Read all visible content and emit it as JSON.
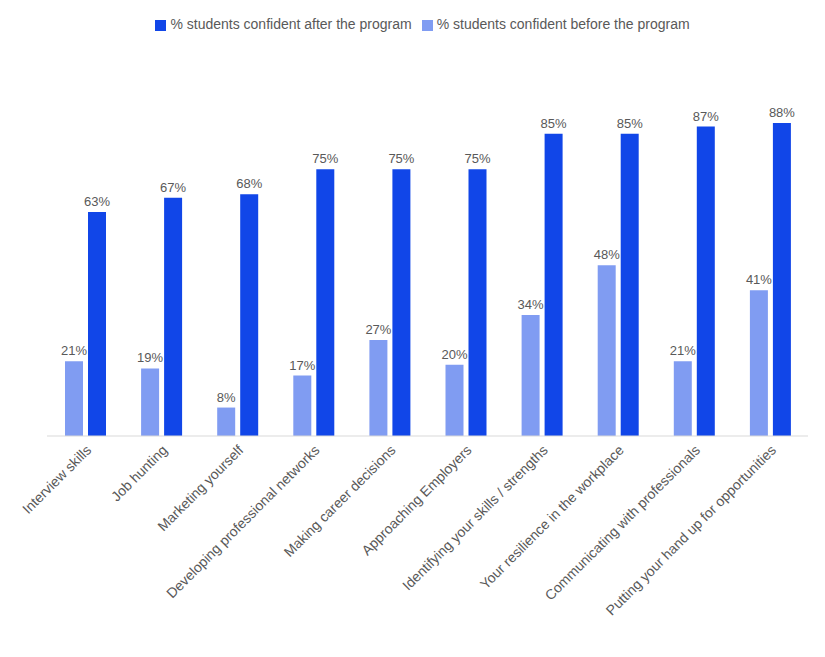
{
  "chart_data": {
    "type": "bar",
    "categories": [
      "Interview skills",
      "Job hunting",
      "Marketing yourself",
      "Developing professional networks",
      "Making career decisions",
      "Approaching Employers",
      "Identifying your skills / strengths",
      "Your resilience in the workplace",
      "Communicating with professionals",
      "Putting your hand up for opportunities"
    ],
    "series": [
      {
        "name": "% students confident before the program",
        "color": "#809cf2",
        "values": [
          21,
          19,
          8,
          17,
          27,
          20,
          34,
          48,
          21,
          41
        ],
        "value_labels": [
          "21%",
          "19%",
          "8%",
          "17%",
          "27%",
          "20%",
          "34%",
          "48%",
          "21%",
          "41%"
        ]
      },
      {
        "name": "% students confident after the program",
        "color": "#1146e8",
        "values": [
          63,
          67,
          68,
          75,
          75,
          75,
          85,
          85,
          87,
          88
        ],
        "value_labels": [
          "63%",
          "67%",
          "68%",
          "75%",
          "75%",
          "75%",
          "85%",
          "85%",
          "87%",
          "88%"
        ]
      }
    ],
    "data_labels": true,
    "legend": "top",
    "tick_labels": "x",
    "grid": false
  }
}
